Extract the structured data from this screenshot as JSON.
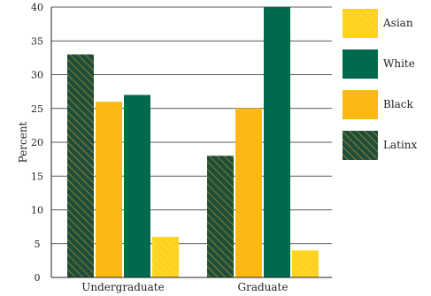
{
  "chart_data": {
    "type": "bar",
    "categories": [
      "Undergraduate",
      "Graduate"
    ],
    "series": [
      {
        "name": "Latinx",
        "values": [
          33,
          18
        ],
        "color": "#1f4d3a",
        "pattern": "hatch"
      },
      {
        "name": "Black",
        "values": [
          26,
          25
        ],
        "color": "#fdb913",
        "pattern": "solid"
      },
      {
        "name": "White",
        "values": [
          27,
          40
        ],
        "color": "#006a4e",
        "pattern": "solid"
      },
      {
        "name": "Asian",
        "values": [
          6,
          4
        ],
        "color": "#ffd21f",
        "pattern": "dotted"
      }
    ],
    "legend_order": [
      "Asian",
      "White",
      "Black",
      "Latinx"
    ],
    "ylabel": "Percent",
    "ylim": [
      0,
      40
    ],
    "yticks": [
      "0",
      "5",
      "10",
      "15",
      "20",
      "25",
      "30",
      "35",
      "40"
    ],
    "grid": true,
    "legend_position": "right"
  }
}
